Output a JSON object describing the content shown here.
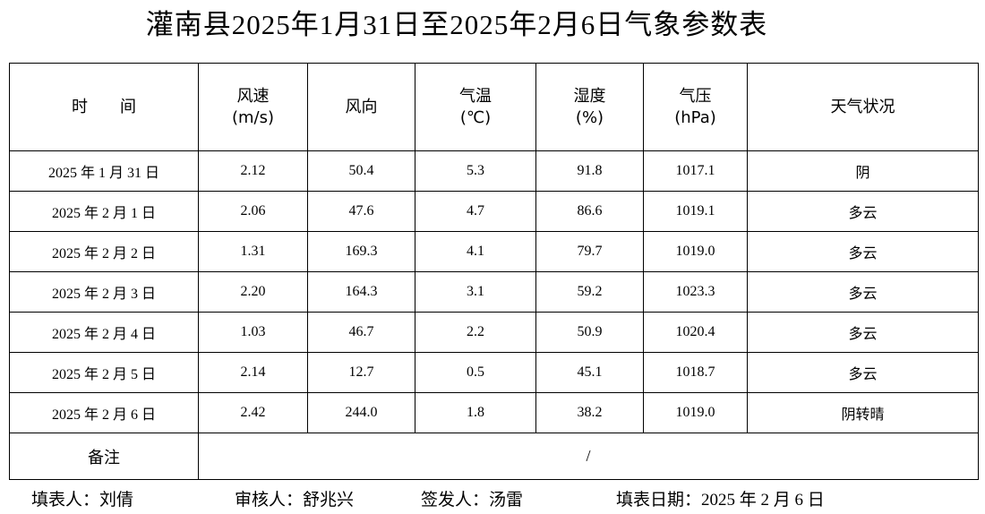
{
  "title": "灌南县2025年1月31日至2025年2月6日气象参数表",
  "table": {
    "header": [
      [
        "时　　间"
      ],
      [
        "风速",
        "(m/s)"
      ],
      [
        "风向"
      ],
      [
        "气温",
        "(℃)"
      ],
      [
        "湿度",
        "(%)"
      ],
      [
        "气压",
        "(hPa)"
      ],
      [
        "天气状况"
      ]
    ],
    "rows": [
      [
        "2025 年 1 月 31 日",
        "2.12",
        "50.4",
        "5.3",
        "91.8",
        "1017.1",
        "阴"
      ],
      [
        "2025 年 2 月 1 日",
        "2.06",
        "47.6",
        "4.7",
        "86.6",
        "1019.1",
        "多云"
      ],
      [
        "2025 年 2 月 2 日",
        "1.31",
        "169.3",
        "4.1",
        "79.7",
        "1019.0",
        "多云"
      ],
      [
        "2025 年 2 月 3 日",
        "2.20",
        "164.3",
        "3.1",
        "59.2",
        "1023.3",
        "多云"
      ],
      [
        "2025 年 2 月 4 日",
        "1.03",
        "46.7",
        "2.2",
        "50.9",
        "1020.4",
        "多云"
      ],
      [
        "2025 年 2 月 5 日",
        "2.14",
        "12.7",
        "0.5",
        "45.1",
        "1018.7",
        "多云"
      ],
      [
        "2025 年 2 月 6 日",
        "2.42",
        "244.0",
        "1.8",
        "38.2",
        "1019.0",
        "阴转晴"
      ]
    ],
    "remark": {
      "label": "备注",
      "value": "/"
    }
  },
  "footer": [
    "填表人：刘倩",
    "审核人：舒兆兴",
    "签发人：汤雷",
    "填表日期：2025 年 2 月 6 日"
  ]
}
